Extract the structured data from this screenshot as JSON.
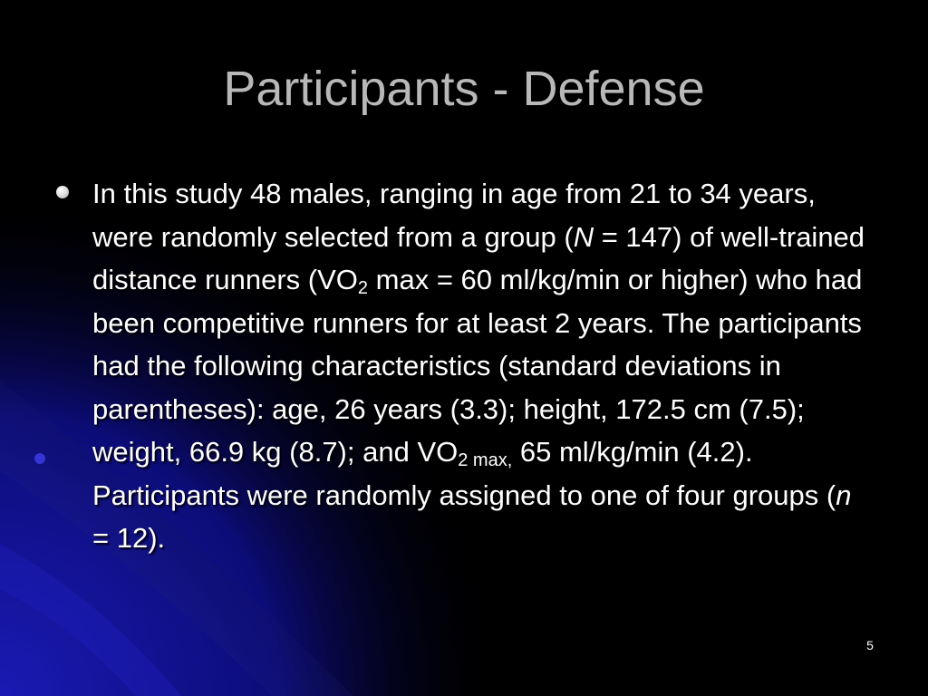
{
  "slide": {
    "title": "Participants - Defense",
    "number": "5",
    "colors": {
      "background": "#000000",
      "title": "#b8b8b8",
      "text": "#ffffff",
      "accent": "#1010a0"
    },
    "bullet_icon": "bullet-sphere-icon",
    "bullet": {
      "t1": "In this study 48 males, ranging in age from 21 to 34 years, were randomly selected from a group (",
      "n_symbol": "N",
      "t2": " = 147) of well-trained distance runners (VO",
      "sub1": "2",
      "t3": " max = 60 ml/kg/min or higher) who had been competitive runners for at least 2 years. The participants had the following characteristics (standard deviations in parentheses): age, 26 years (3.3); height, 172.5 cm (7.5); weight, 66.9 kg (8.7); and VO",
      "sub2": "2 max,",
      "t4": " 65 ml/kg/min (4.2). Participants were randomly assigned to one of four groups (",
      "n_group": "n",
      "t5": " = 12)."
    }
  }
}
